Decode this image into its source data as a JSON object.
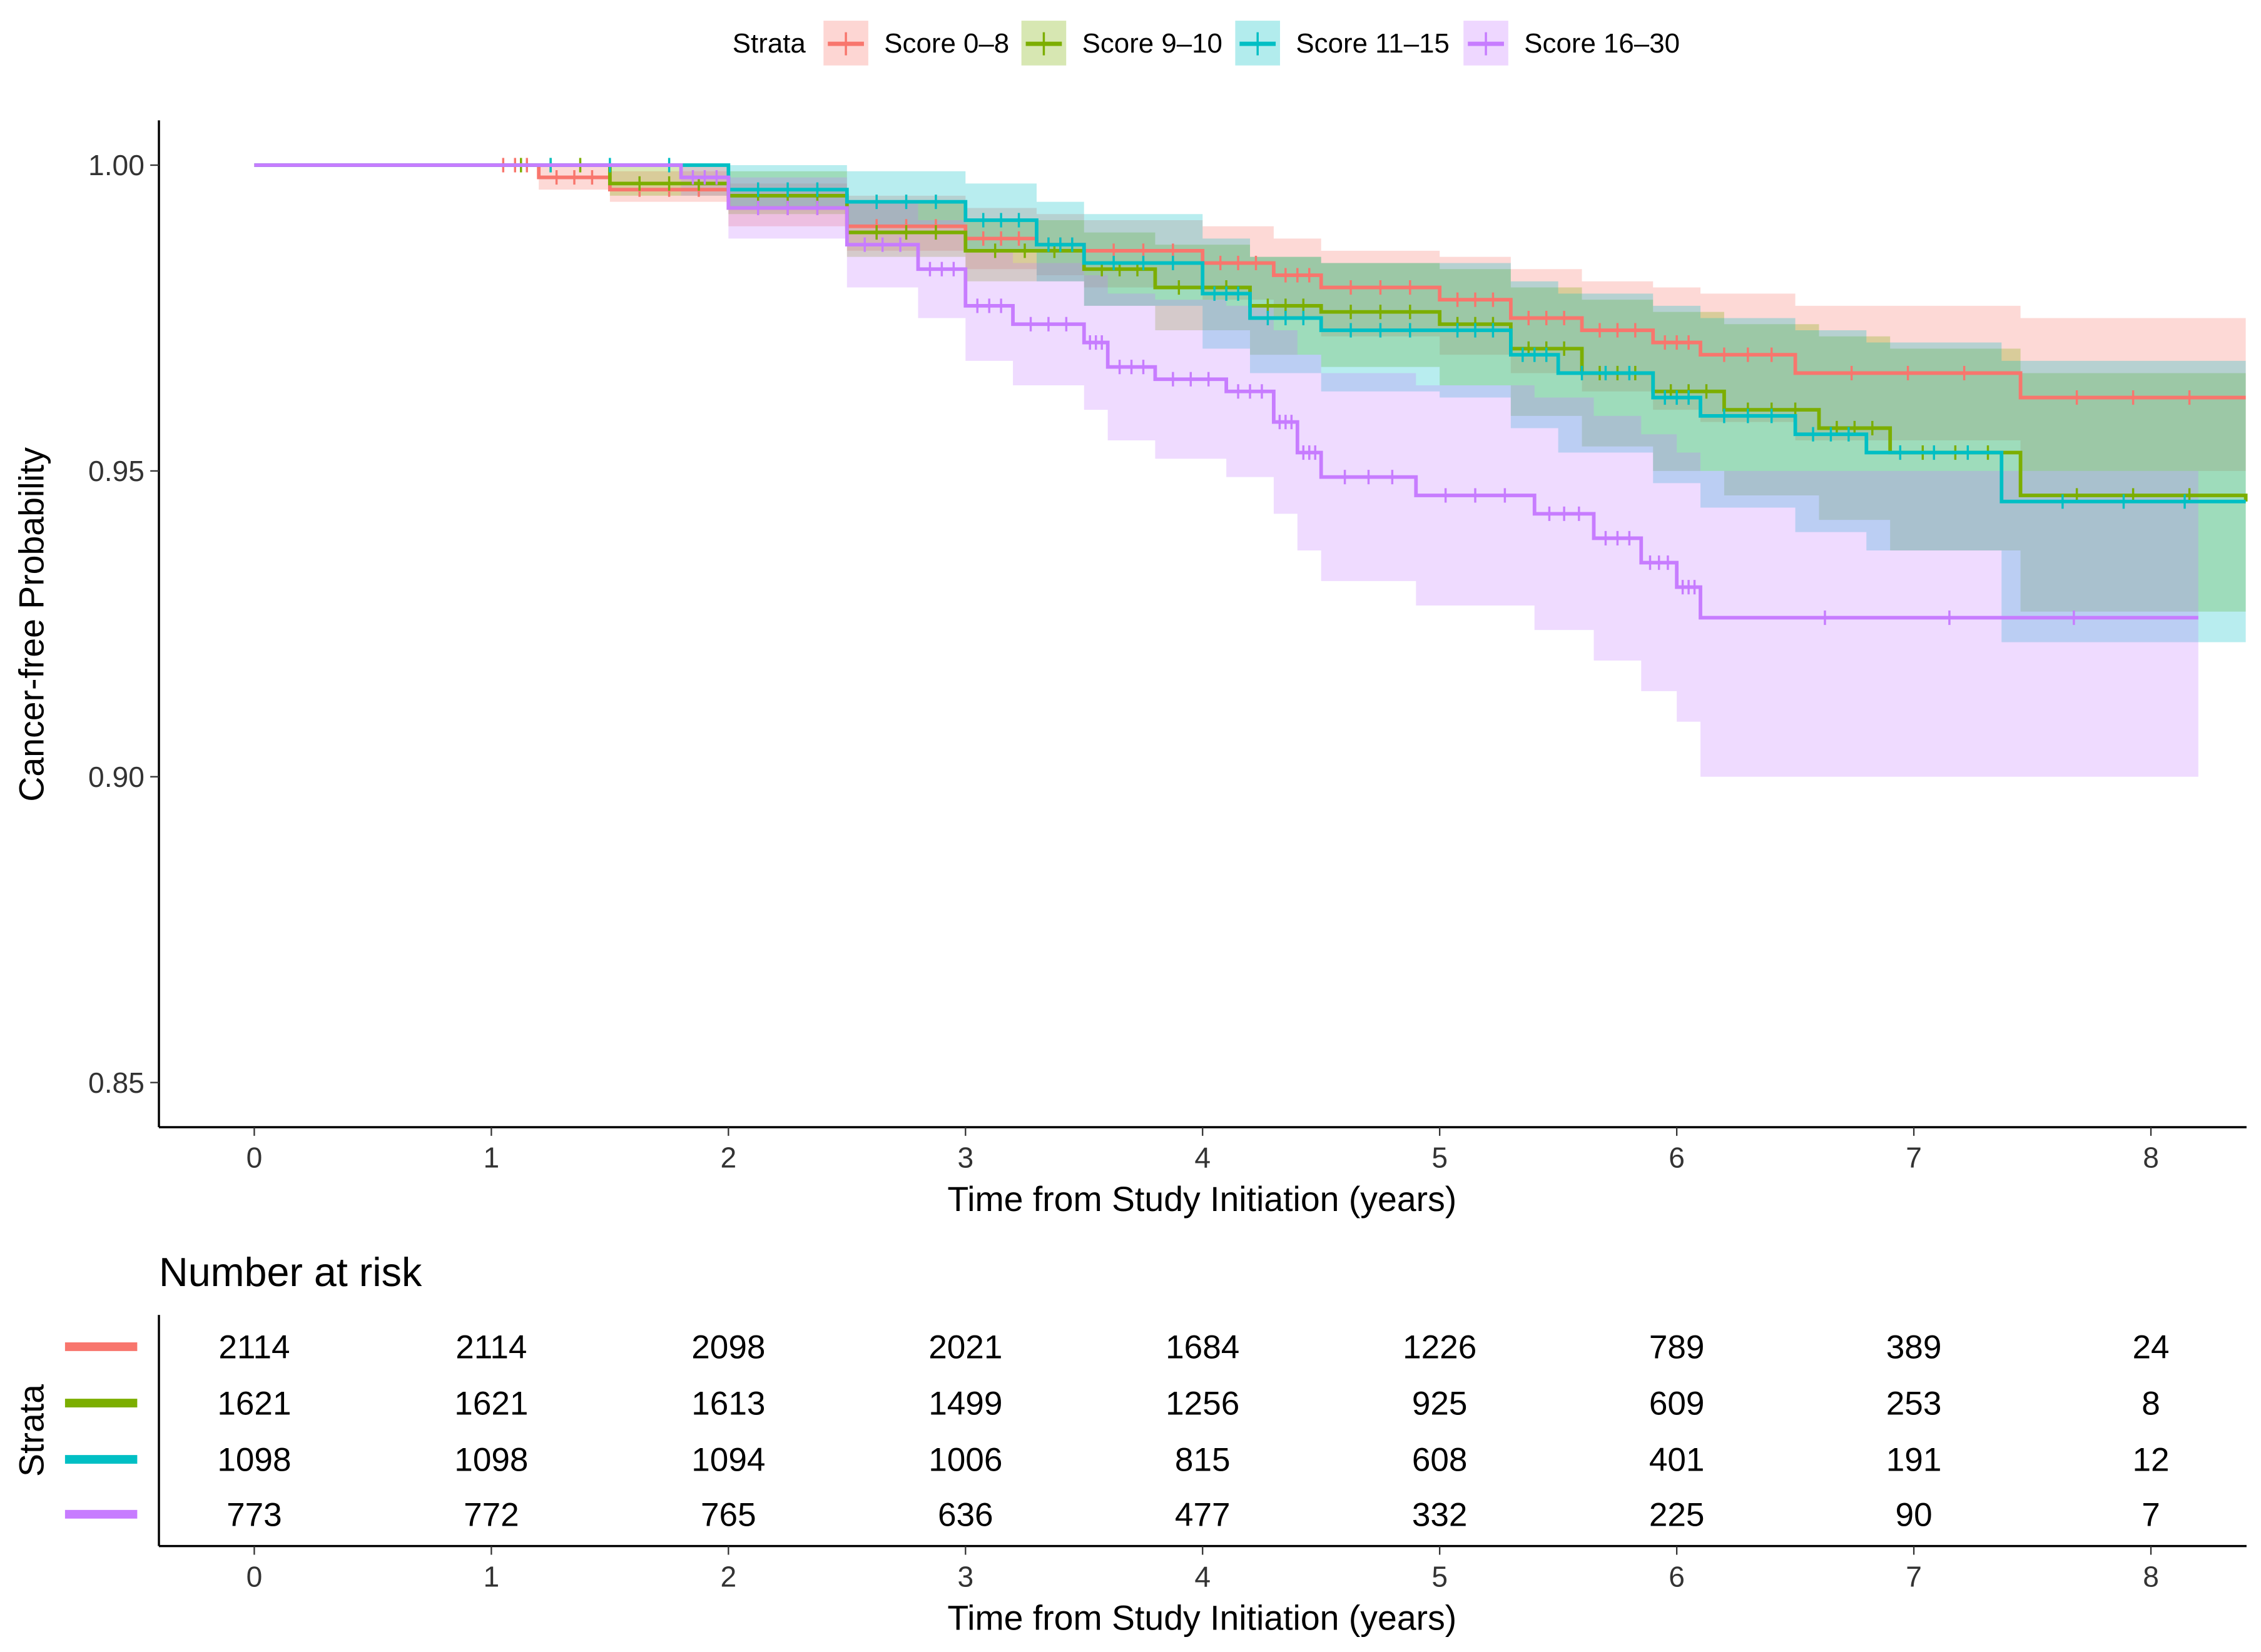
{
  "chart_data": {
    "type": "line",
    "subtype": "kaplan-meier step curves with confidence bands and risk table",
    "legend": {
      "title": "Strata",
      "placement": "top"
    },
    "xlabel": "Time from Study Initiation (years)",
    "ylabel": "Cancer-free Probability",
    "xlim": [
      -0.4,
      8.4
    ],
    "ylim": [
      0.843,
      1.007
    ],
    "xticks": [
      "0",
      "1",
      "2",
      "3",
      "4",
      "5",
      "6",
      "7",
      "8"
    ],
    "yticks": [
      "0.85",
      "0.90",
      "0.95",
      "1.00"
    ],
    "grid": false,
    "series": [
      {
        "name": "Score 0–8",
        "color": "#F8766D",
        "time": [
          0,
          1,
          1.2,
          1.5,
          2,
          2.5,
          3,
          3.3,
          3.5,
          4,
          4.3,
          4.5,
          5,
          5.3,
          5.6,
          5.9,
          6.1,
          6.5,
          7.45,
          8.4
        ],
        "surv": [
          1,
          1,
          0.998,
          0.996,
          0.993,
          0.99,
          0.988,
          0.987,
          0.986,
          0.984,
          0.982,
          0.98,
          0.978,
          0.975,
          0.973,
          0.971,
          0.969,
          0.966,
          0.962,
          0.962
        ],
        "lower": [
          1,
          1,
          0.996,
          0.994,
          0.99,
          0.986,
          0.983,
          0.982,
          0.98,
          0.978,
          0.975,
          0.972,
          0.969,
          0.966,
          0.963,
          0.96,
          0.958,
          0.955,
          0.95,
          0.95
        ],
        "upper": [
          1,
          1,
          1.0,
          0.999,
          0.997,
          0.995,
          0.993,
          0.992,
          0.991,
          0.99,
          0.988,
          0.986,
          0.985,
          0.983,
          0.981,
          0.98,
          0.979,
          0.977,
          0.975,
          0.975
        ]
      },
      {
        "name": "Score 9–10",
        "color": "#7CAE00",
        "time": [
          0,
          1,
          1.5,
          2,
          2.5,
          3,
          3.5,
          3.8,
          4.2,
          4.5,
          5,
          5.3,
          5.6,
          5.9,
          6.2,
          6.6,
          6.9,
          7.45,
          8.4
        ],
        "surv": [
          1,
          1,
          0.997,
          0.995,
          0.989,
          0.986,
          0.983,
          0.98,
          0.977,
          0.976,
          0.974,
          0.97,
          0.966,
          0.963,
          0.96,
          0.957,
          0.953,
          0.946,
          0.945
        ],
        "lower": [
          1,
          1,
          0.995,
          0.992,
          0.985,
          0.981,
          0.977,
          0.973,
          0.969,
          0.967,
          0.964,
          0.959,
          0.954,
          0.95,
          0.946,
          0.942,
          0.937,
          0.927,
          0.927
        ],
        "upper": [
          1,
          1,
          1.0,
          0.999,
          0.994,
          0.991,
          0.989,
          0.987,
          0.985,
          0.984,
          0.983,
          0.98,
          0.978,
          0.976,
          0.974,
          0.972,
          0.97,
          0.966,
          0.966
        ]
      },
      {
        "name": "Score 11–15",
        "color": "#00BFC4",
        "time": [
          0,
          1,
          2,
          2.5,
          3,
          3.3,
          3.5,
          4,
          4.2,
          4.5,
          5,
          5.3,
          5.5,
          5.9,
          6.1,
          6.5,
          6.8,
          7.37,
          8.4
        ],
        "surv": [
          1,
          1,
          0.996,
          0.994,
          0.991,
          0.987,
          0.984,
          0.979,
          0.975,
          0.973,
          0.973,
          0.969,
          0.966,
          0.962,
          0.959,
          0.956,
          0.953,
          0.945,
          0.945
        ],
        "lower": [
          1,
          1,
          0.993,
          0.99,
          0.986,
          0.981,
          0.977,
          0.97,
          0.966,
          0.963,
          0.962,
          0.957,
          0.953,
          0.948,
          0.944,
          0.94,
          0.937,
          0.922,
          0.922
        ],
        "upper": [
          1,
          1,
          1.0,
          0.999,
          0.997,
          0.994,
          0.992,
          0.988,
          0.985,
          0.984,
          0.984,
          0.981,
          0.979,
          0.977,
          0.975,
          0.973,
          0.971,
          0.968,
          0.968
        ]
      },
      {
        "name": "Score 16–30",
        "color": "#C77CFF",
        "time": [
          0,
          1.8,
          2,
          2.5,
          2.8,
          3,
          3.2,
          3.5,
          3.6,
          3.8,
          4.1,
          4.3,
          4.4,
          4.5,
          4.9,
          5.4,
          5.65,
          5.85,
          6.0,
          6.1,
          8.2
        ],
        "surv": [
          1,
          0.998,
          0.993,
          0.987,
          0.983,
          0.977,
          0.974,
          0.971,
          0.967,
          0.965,
          0.963,
          0.958,
          0.953,
          0.949,
          0.946,
          0.943,
          0.939,
          0.935,
          0.931,
          0.926,
          0.926
        ],
        "lower": [
          1,
          0.995,
          0.988,
          0.98,
          0.975,
          0.968,
          0.964,
          0.96,
          0.955,
          0.952,
          0.949,
          0.943,
          0.937,
          0.932,
          0.928,
          0.924,
          0.919,
          0.914,
          0.909,
          0.9,
          0.9
        ],
        "upper": [
          1,
          1.0,
          0.998,
          0.994,
          0.991,
          0.986,
          0.984,
          0.982,
          0.979,
          0.978,
          0.977,
          0.973,
          0.969,
          0.966,
          0.964,
          0.962,
          0.959,
          0.956,
          0.953,
          0.95,
          0.95
        ]
      }
    ],
    "risk_table": {
      "title": "Number at risk",
      "ylabel": "Strata",
      "xlabel": "Time from Study Initiation (years)",
      "times": [
        0,
        1,
        2,
        3,
        4,
        5,
        6,
        7,
        8
      ],
      "rows": [
        [
          "2114",
          "2114",
          "2098",
          "2021",
          "1684",
          "1226",
          "789",
          "389",
          "24"
        ],
        [
          "1621",
          "1621",
          "1613",
          "1499",
          "1256",
          "925",
          "609",
          "253",
          "8"
        ],
        [
          "1098",
          "1098",
          "1094",
          "1006",
          "815",
          "608",
          "401",
          "191",
          "12"
        ],
        [
          "773",
          "772",
          "765",
          "636",
          "477",
          "332",
          "225",
          "90",
          "7"
        ]
      ]
    }
  }
}
